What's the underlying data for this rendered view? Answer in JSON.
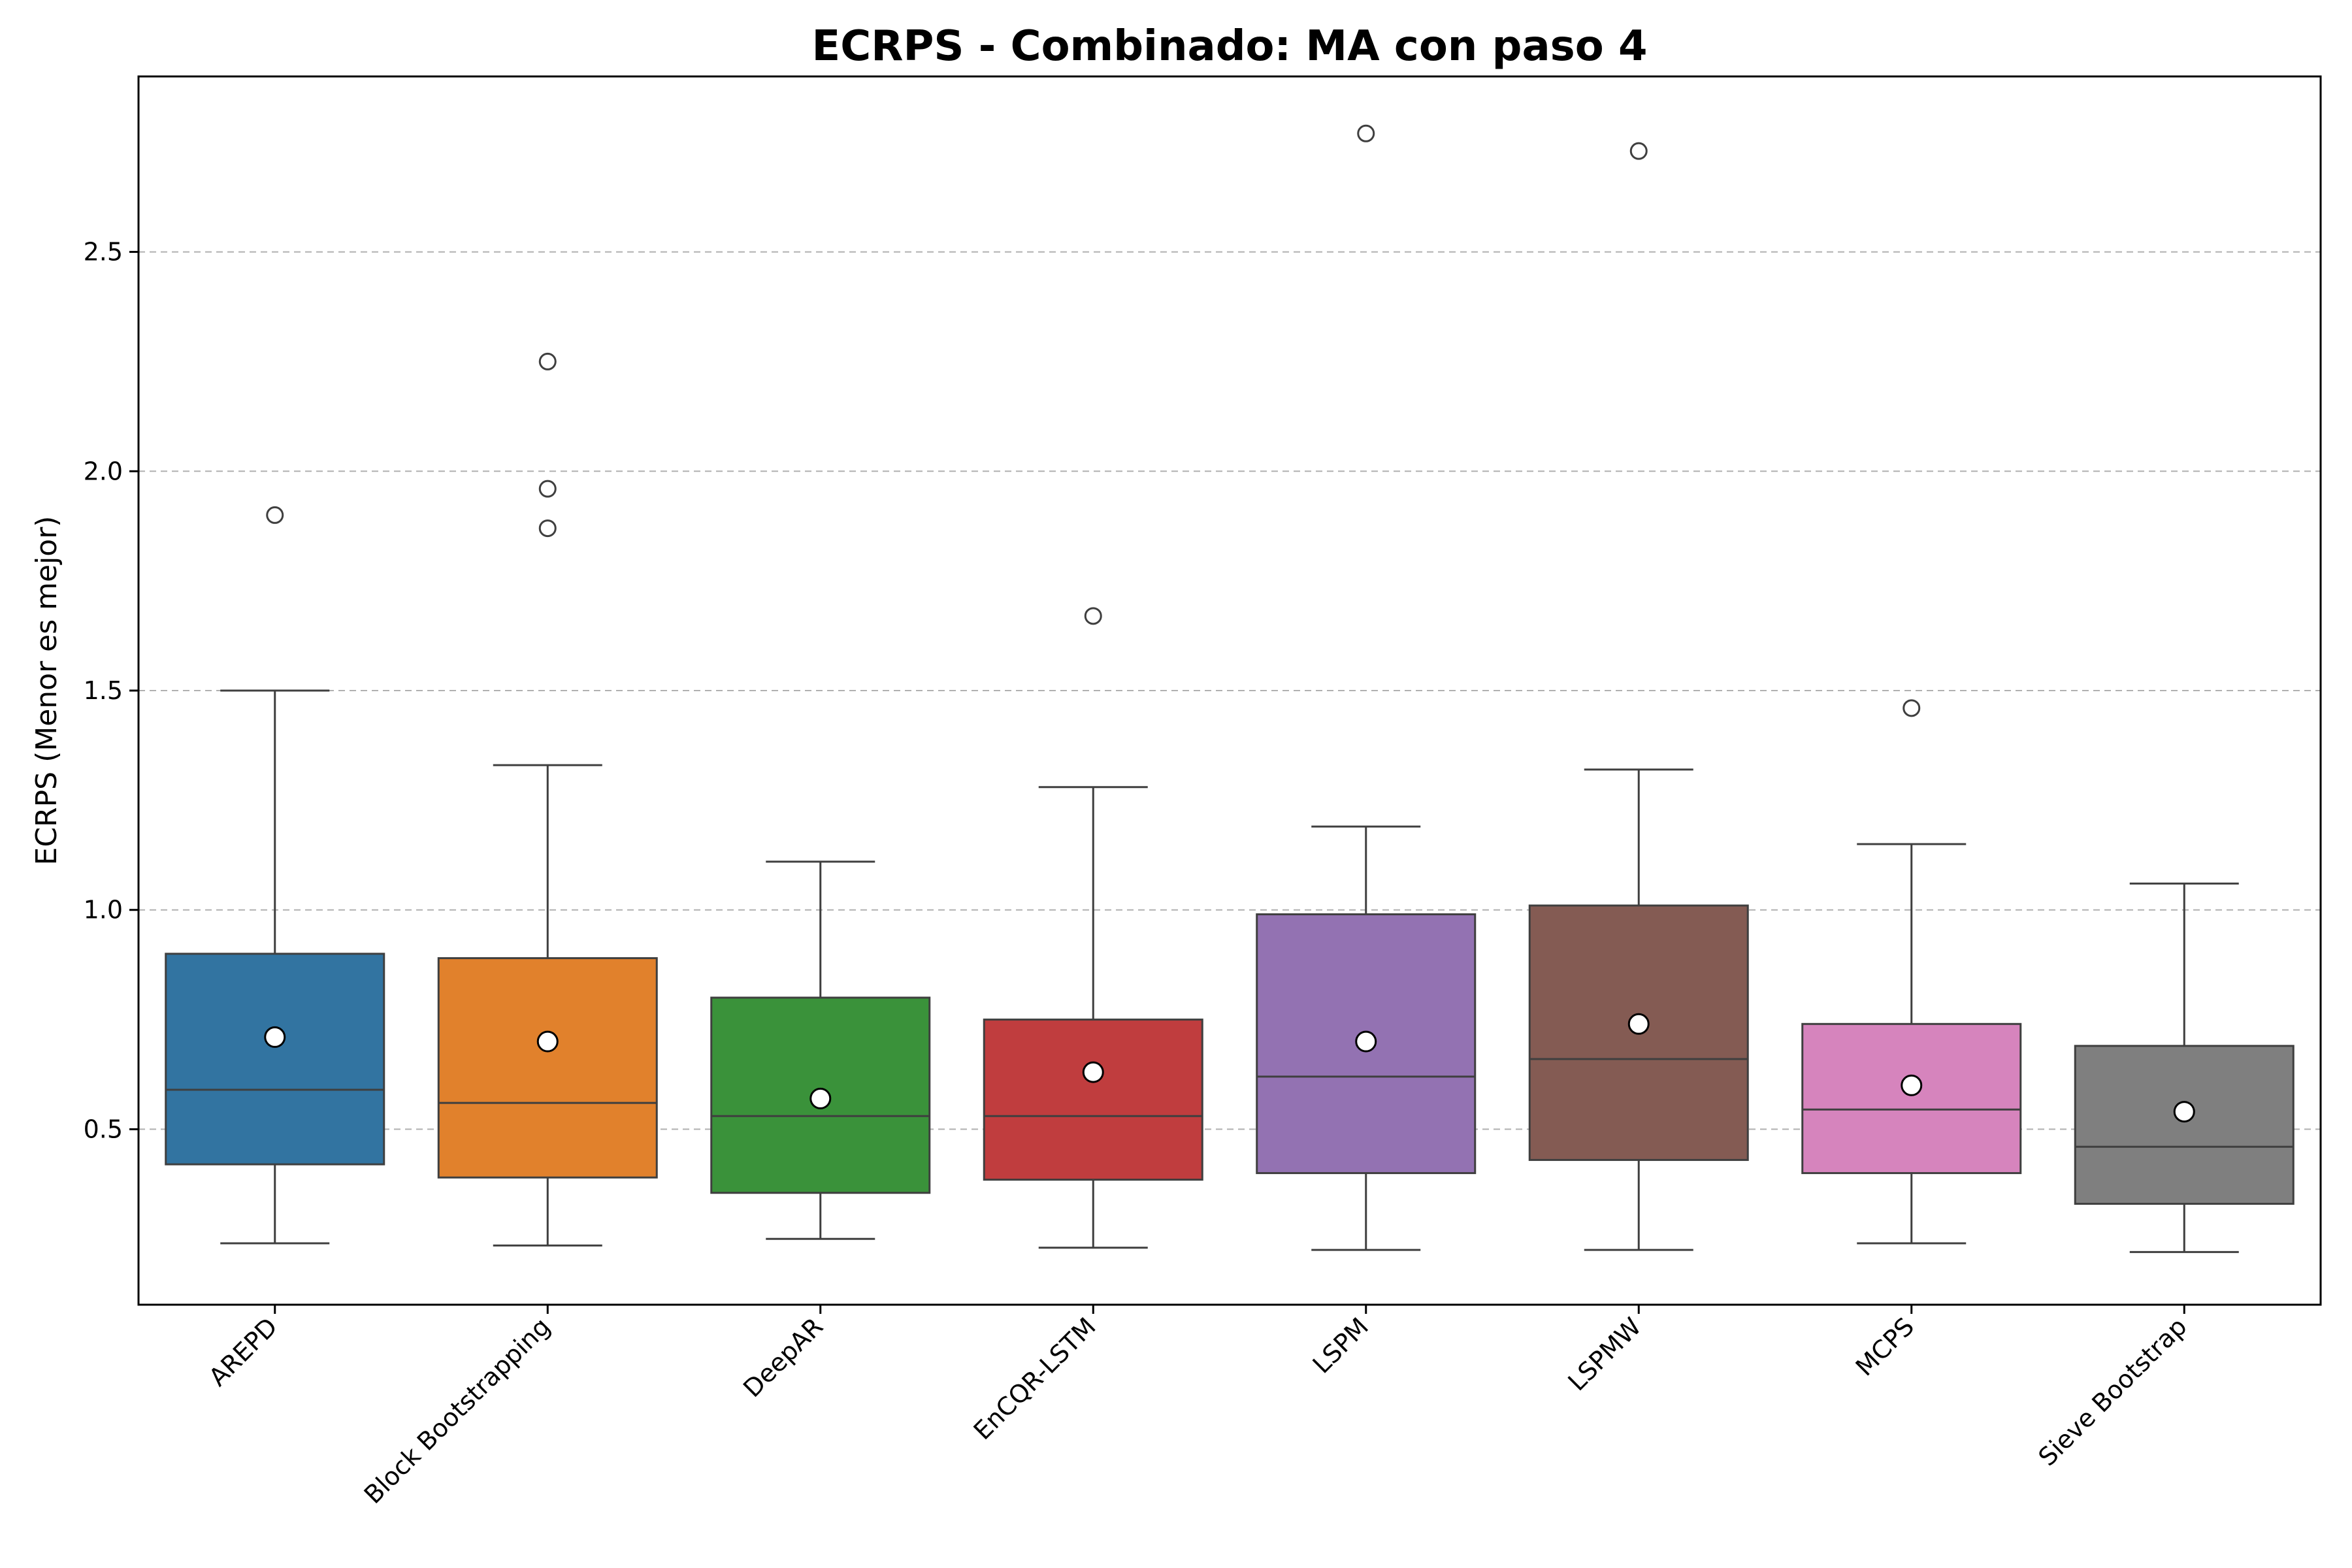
{
  "chart_data": {
    "type": "box",
    "title": "ECRPS - Combinado: MA con paso 4",
    "xlabel": "",
    "ylabel": "ECRPS (Menor es mejor)",
    "ylim": [
      0.1,
      2.9
    ],
    "yticks": [
      "0.5",
      "1.0",
      "1.5",
      "2.0",
      "2.5"
    ],
    "grid": "horizontal dashed",
    "categories": [
      "AREPD",
      "Block Bootstrapping",
      "DeepAR",
      "EnCQR-LSTM",
      "LSPM",
      "LSPMW",
      "MCPS",
      "Sieve Bootstrap"
    ],
    "colors": [
      "#3274a1",
      "#e1812c",
      "#3a923a",
      "#c03d3e",
      "#9372b2",
      "#845b53",
      "#d684bd",
      "#7f7f7f"
    ],
    "boxes": [
      {
        "whisker_low": 0.24,
        "q1": 0.42,
        "median": 0.59,
        "q3": 0.9,
        "whisker_high": 1.5,
        "mean": 0.71,
        "outliers": [
          1.9
        ]
      },
      {
        "whisker_low": 0.235,
        "q1": 0.39,
        "median": 0.56,
        "q3": 0.89,
        "whisker_high": 1.33,
        "mean": 0.7,
        "outliers": [
          2.25,
          1.96,
          1.87
        ]
      },
      {
        "whisker_low": 0.25,
        "q1": 0.355,
        "median": 0.53,
        "q3": 0.8,
        "whisker_high": 1.11,
        "mean": 0.57,
        "outliers": []
      },
      {
        "whisker_low": 0.23,
        "q1": 0.385,
        "median": 0.53,
        "q3": 0.75,
        "whisker_high": 1.28,
        "mean": 0.63,
        "outliers": [
          1.67
        ]
      },
      {
        "whisker_low": 0.225,
        "q1": 0.4,
        "median": 0.62,
        "q3": 0.99,
        "whisker_high": 1.19,
        "mean": 0.7,
        "outliers": [
          2.77
        ]
      },
      {
        "whisker_low": 0.225,
        "q1": 0.43,
        "median": 0.66,
        "q3": 1.01,
        "whisker_high": 1.32,
        "mean": 0.74,
        "outliers": [
          2.73
        ]
      },
      {
        "whisker_low": 0.24,
        "q1": 0.4,
        "median": 0.545,
        "q3": 0.74,
        "whisker_high": 1.15,
        "mean": 0.6,
        "outliers": [
          1.46
        ]
      },
      {
        "whisker_low": 0.22,
        "q1": 0.33,
        "median": 0.46,
        "q3": 0.69,
        "whisker_high": 1.06,
        "mean": 0.54,
        "outliers": []
      }
    ]
  }
}
